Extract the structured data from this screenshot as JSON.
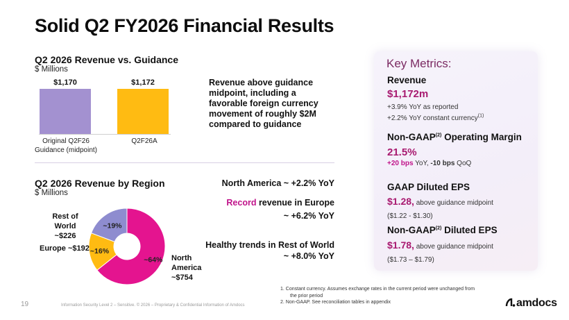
{
  "title": "Solid Q2 FY2026 Financial Results",
  "guidance": {
    "heading": "Q2 2026 Revenue vs. Guidance",
    "unit": "$ Millions",
    "note": "Revenue above guidance midpoint, including a favorable foreign currency movement of roughly $2M compared to guidance"
  },
  "region": {
    "heading": "Q2 2026 Revenue by Region",
    "unit": "$ Millions",
    "labels": {
      "rest": [
        "Rest of World",
        "~$226"
      ],
      "europe": "Europe ~$192",
      "na": [
        "North",
        "America",
        "~$754"
      ]
    },
    "notes": {
      "na": "North America ~ +2.2% YoY",
      "europe_1_accent": "Record",
      "europe_1_rest": " revenue in Europe",
      "europe_2": "~ +6.2% YoY",
      "row_1": "Healthy trends in Rest of World",
      "row_2": "~ +8.0% YoY"
    }
  },
  "chart_data": [
    {
      "type": "bar",
      "categories": [
        "Original Q2F26 Guidance (midpoint)",
        "Q2F26A"
      ],
      "values": [
        1170,
        1172
      ],
      "value_labels": [
        "$1,170",
        "$1,172"
      ],
      "title": "Q2 2026 Revenue vs. Guidance",
      "ylabel": "$ Millions",
      "colors": [
        "#a391d0",
        "#ffbb12"
      ]
    },
    {
      "type": "pie",
      "donut": true,
      "title": "Q2 2026 Revenue by Region",
      "categories": [
        "North America",
        "Europe",
        "Rest of World"
      ],
      "values": [
        754,
        192,
        226
      ],
      "slice_labels": [
        "~64%",
        "~16%",
        "~19%"
      ],
      "colors": [
        "#e4148f",
        "#ffbb12",
        "#8e8ccf"
      ]
    }
  ],
  "metrics": {
    "heading": "Key Metrics:",
    "revenue": {
      "label": "Revenue",
      "value": "$1,172m",
      "line1": "+3.9% YoY as reported",
      "line2": "+2.2% YoY constant currency",
      "line2_sup": "(1)"
    },
    "margin": {
      "label_a": "Non-GAAP",
      "label_sup": "(2)",
      "label_b": " Operating Margin",
      "value": "21.5%",
      "bps1": "+20 bps",
      "bps1_rest": " YoY, ",
      "bps2": "-10 bps",
      "bps2_rest": " QoQ"
    },
    "gaap_eps": {
      "label": "GAAP Diluted EPS",
      "value": "$1.28,",
      "desc": " above guidance midpoint",
      "range": "($1.22 - $1.30)"
    },
    "nongaap_eps": {
      "label_a": "Non-GAAP",
      "label_sup": "(2)",
      "label_b": " Diluted EPS",
      "value": "$1.78,",
      "desc": " above guidance midpoint",
      "range": "($1.73 – $1.79)"
    }
  },
  "footnotes": [
    "1.   Constant currency. Assumes exchange rates in the current period were unchanged from",
    "the prior period",
    "2.   Non-GAAP. See reconciliation tables in appendix"
  ],
  "footer": "Information Security Level 2 – Sensitive. © 2026 – Proprietary & Confidential Information of Amdocs",
  "page_number": "19",
  "logo": "amdocs"
}
